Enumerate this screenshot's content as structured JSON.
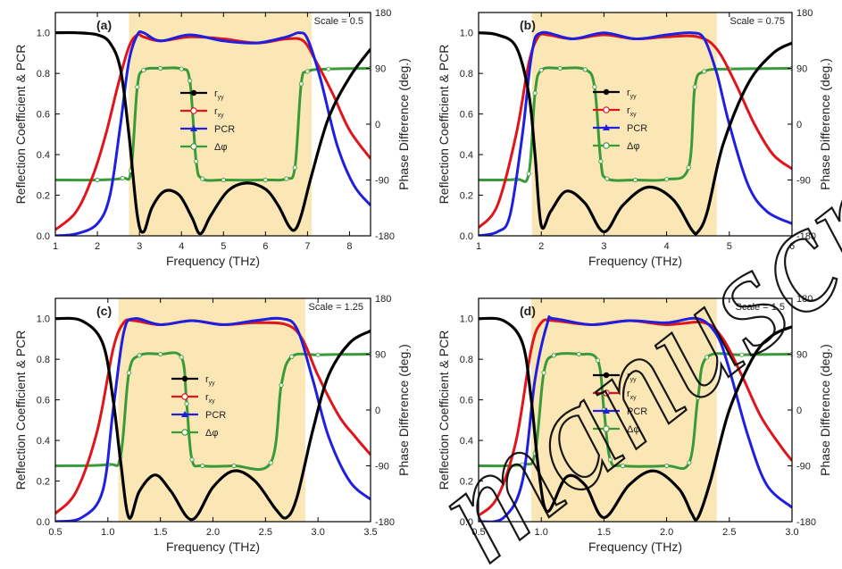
{
  "watermark": "manuscript",
  "chart_data": [
    {
      "type": "line",
      "panel_label": "(a)",
      "annotation": "Scale = 0.5",
      "xlabel": "Frequency (THz)",
      "ylabel": "Reflection Coefficient & PCR",
      "y2label": "Phase Difference (deg.)",
      "xlim": [
        1,
        8.5
      ],
      "ylim": [
        0,
        1.1
      ],
      "y2lim": [
        -180,
        180
      ],
      "xticks": [
        "1",
        "2",
        "3",
        "4",
        "5",
        "6",
        "7",
        "8"
      ],
      "yticks": [
        "0.0",
        "0.2",
        "0.4",
        "0.6",
        "0.8",
        "1.0"
      ],
      "y2ticks": [
        "-180",
        "-90",
        "0",
        "90",
        "180"
      ],
      "highlight_band": [
        2.75,
        7.1
      ],
      "legend": [
        "r_yy",
        "r_xy",
        "PCR",
        "Δφ"
      ],
      "series": [
        {
          "name": "r_yy",
          "color": "#000000",
          "x": [
            1,
            1.5,
            2,
            2.3,
            2.55,
            2.75,
            2.95,
            3.1,
            3.3,
            3.6,
            3.95,
            4.25,
            4.45,
            4.7,
            5.1,
            5.55,
            6.0,
            6.3,
            6.55,
            6.7,
            6.85,
            7.1,
            7.5,
            8.0,
            8.5
          ],
          "y": [
            1.0,
            1.0,
            0.99,
            0.95,
            0.82,
            0.5,
            0.1,
            0.02,
            0.14,
            0.22,
            0.2,
            0.09,
            0.01,
            0.1,
            0.22,
            0.26,
            0.23,
            0.15,
            0.05,
            0.03,
            0.1,
            0.3,
            0.58,
            0.78,
            0.92
          ]
        },
        {
          "name": "r_xy",
          "color": "#e0151b",
          "x": [
            1,
            1.5,
            1.9,
            2.2,
            2.5,
            2.75,
            2.95,
            3.1,
            3.5,
            4.2,
            5.0,
            5.8,
            6.5,
            6.9,
            7.2,
            7.6,
            8.0,
            8.5
          ],
          "y": [
            0.03,
            0.12,
            0.3,
            0.5,
            0.75,
            0.93,
            0.99,
            0.98,
            0.96,
            0.98,
            0.97,
            0.95,
            0.97,
            0.96,
            0.86,
            0.7,
            0.52,
            0.38
          ]
        },
        {
          "name": "PCR",
          "color": "#1f1fe0",
          "x": [
            1,
            1.5,
            2.0,
            2.3,
            2.55,
            2.75,
            2.95,
            3.1,
            3.5,
            4.2,
            5.0,
            5.8,
            6.5,
            6.8,
            7.0,
            7.3,
            7.7,
            8.1,
            8.5
          ],
          "y": [
            0.0,
            0.01,
            0.06,
            0.2,
            0.55,
            0.86,
            0.99,
            1.0,
            0.96,
            0.99,
            0.96,
            0.95,
            0.98,
            1.0,
            0.97,
            0.78,
            0.45,
            0.25,
            0.15
          ]
        },
        {
          "name": "Δφ",
          "color": "#3a9a3a",
          "axis": "right",
          "x": [
            1,
            2.0,
            2.6,
            2.8,
            2.95,
            3.1,
            3.5,
            4.0,
            4.2,
            4.35,
            4.5,
            5.0,
            6.0,
            6.5,
            6.7,
            6.85,
            7.0,
            7.5,
            8.5
          ],
          "y": [
            -90,
            -90,
            -87,
            -75,
            60,
            87,
            90,
            89,
            70,
            -60,
            -88,
            -90,
            -90,
            -88,
            -70,
            65,
            85,
            89,
            90
          ]
        }
      ]
    },
    {
      "type": "line",
      "panel_label": "(b)",
      "annotation": "Scale = 0.75",
      "xlabel": "Frequency (THz)",
      "ylabel": "Reflection Coefficient & PCR",
      "y2label": "Phase Difference (deg.)",
      "xlim": [
        1,
        6
      ],
      "ylim": [
        0,
        1.1
      ],
      "y2lim": [
        -180,
        180
      ],
      "xticks": [
        "1",
        "2",
        "3",
        "4",
        "5",
        "6"
      ],
      "yticks": [
        "0.0",
        "0.2",
        "0.4",
        "0.6",
        "0.8",
        "1.0"
      ],
      "y2ticks": [
        "-180",
        "-90",
        "0",
        "90",
        "180"
      ],
      "highlight_band": [
        1.85,
        4.8
      ],
      "legend": [
        "r_yy",
        "r_xy",
        "PCR",
        "Δφ"
      ],
      "series": [
        {
          "name": "r_yy",
          "color": "#000000",
          "x": [
            1,
            1.3,
            1.6,
            1.8,
            1.9,
            2.0,
            2.15,
            2.4,
            2.7,
            3.0,
            3.3,
            3.7,
            4.1,
            4.4,
            4.5,
            4.65,
            4.9,
            5.3,
            5.7,
            6.0
          ],
          "y": [
            1.0,
            0.99,
            0.93,
            0.7,
            0.4,
            0.05,
            0.12,
            0.22,
            0.16,
            0.02,
            0.15,
            0.24,
            0.18,
            0.03,
            0.02,
            0.12,
            0.45,
            0.75,
            0.9,
            0.95
          ]
        },
        {
          "name": "r_xy",
          "color": "#e0151b",
          "x": [
            1,
            1.3,
            1.6,
            1.8,
            1.95,
            2.1,
            2.5,
            3.0,
            3.5,
            4.0,
            4.5,
            4.8,
            5.1,
            5.4,
            5.7,
            6.0
          ],
          "y": [
            0.04,
            0.15,
            0.5,
            0.85,
            0.98,
            0.99,
            0.97,
            0.99,
            0.97,
            0.98,
            0.98,
            0.92,
            0.75,
            0.55,
            0.4,
            0.33
          ]
        },
        {
          "name": "PCR",
          "color": "#1f1fe0",
          "x": [
            1,
            1.3,
            1.5,
            1.7,
            1.85,
            2.0,
            2.5,
            3.0,
            3.5,
            4.0,
            4.4,
            4.6,
            4.8,
            5.0,
            5.3,
            5.6,
            6.0
          ],
          "y": [
            0.0,
            0.02,
            0.1,
            0.5,
            0.9,
            1.0,
            0.97,
            1.0,
            0.97,
            0.99,
            1.0,
            0.97,
            0.8,
            0.55,
            0.25,
            0.12,
            0.06
          ]
        },
        {
          "name": "Δφ",
          "color": "#3a9a3a",
          "axis": "right",
          "x": [
            1,
            1.6,
            1.8,
            1.9,
            2.0,
            2.3,
            2.7,
            2.85,
            2.95,
            3.05,
            3.5,
            4.0,
            4.35,
            4.45,
            4.6,
            5.0,
            6.0
          ],
          "y": [
            -90,
            -89,
            -80,
            50,
            87,
            90,
            88,
            60,
            -60,
            -88,
            -90,
            -89,
            -70,
            60,
            85,
            89,
            90
          ]
        }
      ]
    },
    {
      "type": "line",
      "panel_label": "(c)",
      "annotation": "Scale = 1.25",
      "xlabel": "Frequency (THz)",
      "ylabel": "Reflection Coefficient & PCR",
      "y2label": "Phase Difference (deg.)",
      "xlim": [
        0.5,
        3.5
      ],
      "ylim": [
        0,
        1.1
      ],
      "y2lim": [
        -180,
        180
      ],
      "xticks": [
        "0.5",
        "1.0",
        "1.5",
        "2.0",
        "2.5",
        "3.0",
        "3.5"
      ],
      "yticks": [
        "0.0",
        "0.2",
        "0.4",
        "0.6",
        "0.8",
        "1.0"
      ],
      "y2ticks": [
        "-180",
        "-90",
        "0",
        "90",
        "180"
      ],
      "highlight_band": [
        1.1,
        2.88
      ],
      "legend": [
        "r_yy",
        "r_xy",
        "PCR",
        "Δφ"
      ],
      "series": [
        {
          "name": "r_yy",
          "color": "#000000",
          "x": [
            0.5,
            0.75,
            0.95,
            1.05,
            1.12,
            1.2,
            1.3,
            1.45,
            1.6,
            1.8,
            2.0,
            2.2,
            2.4,
            2.6,
            2.7,
            2.8,
            2.95,
            3.1,
            3.3,
            3.5
          ],
          "y": [
            1.0,
            0.99,
            0.88,
            0.6,
            0.3,
            0.02,
            0.15,
            0.23,
            0.15,
            0.01,
            0.17,
            0.25,
            0.2,
            0.06,
            0.02,
            0.12,
            0.45,
            0.72,
            0.88,
            0.94
          ]
        },
        {
          "name": "r_xy",
          "color": "#e0151b",
          "x": [
            0.5,
            0.7,
            0.9,
            1.05,
            1.15,
            1.25,
            1.5,
            1.8,
            2.1,
            2.4,
            2.7,
            2.85,
            3.0,
            3.2,
            3.35,
            3.5
          ],
          "y": [
            0.04,
            0.15,
            0.45,
            0.85,
            0.98,
            0.99,
            0.97,
            0.99,
            0.97,
            0.98,
            0.97,
            0.9,
            0.72,
            0.52,
            0.42,
            0.33
          ]
        },
        {
          "name": "PCR",
          "color": "#1f1fe0",
          "x": [
            0.5,
            0.75,
            0.95,
            1.05,
            1.15,
            1.25,
            1.5,
            1.8,
            2.1,
            2.4,
            2.65,
            2.8,
            2.95,
            3.1,
            3.3,
            3.5
          ],
          "y": [
            0.0,
            0.02,
            0.15,
            0.55,
            0.93,
            1.0,
            0.97,
            0.99,
            0.97,
            0.99,
            1.0,
            0.95,
            0.7,
            0.42,
            0.2,
            0.11
          ]
        },
        {
          "name": "Δφ",
          "color": "#3a9a3a",
          "axis": "right",
          "x": [
            0.5,
            1.0,
            1.12,
            1.2,
            1.3,
            1.5,
            1.7,
            1.75,
            1.8,
            1.9,
            2.2,
            2.55,
            2.65,
            2.75,
            3.0,
            3.5
          ],
          "y": [
            -90,
            -88,
            -75,
            60,
            88,
            90,
            85,
            10,
            -80,
            -90,
            -90,
            -85,
            40,
            86,
            89,
            90
          ]
        }
      ]
    },
    {
      "type": "line",
      "panel_label": "(d)",
      "annotation": "Scale = 1.5",
      "xlabel": "Frequency (THz)",
      "ylabel": "Reflection Coefficient & PCR",
      "y2label": "Phase Difference (deg.)",
      "xlim": [
        0.5,
        3.0
      ],
      "ylim": [
        0,
        1.1
      ],
      "y2lim": [
        -180,
        180
      ],
      "xticks": [
        "0.5",
        "1.0",
        "1.5",
        "2.0",
        "2.5",
        "3.0"
      ],
      "yticks": [
        "0.0",
        "0.2",
        "0.4",
        "0.6",
        "0.8",
        "1.0"
      ],
      "y2ticks": [
        "-180",
        "-90",
        "0",
        "90",
        "180"
      ],
      "highlight_band": [
        0.92,
        2.4
      ],
      "legend": [
        "r_yy",
        "r_xy",
        "PCR",
        "Δφ"
      ],
      "series": [
        {
          "name": "r_yy",
          "color": "#000000",
          "x": [
            0.5,
            0.7,
            0.85,
            0.92,
            0.98,
            1.05,
            1.2,
            1.35,
            1.5,
            1.7,
            1.9,
            2.1,
            2.2,
            2.25,
            2.35,
            2.5,
            2.7,
            2.85,
            3.0
          ],
          "y": [
            1.0,
            0.99,
            0.88,
            0.6,
            0.25,
            0.05,
            0.22,
            0.18,
            0.02,
            0.18,
            0.25,
            0.16,
            0.04,
            0.02,
            0.2,
            0.55,
            0.82,
            0.92,
            0.96
          ]
        },
        {
          "name": "r_xy",
          "color": "#e0151b",
          "x": [
            0.5,
            0.65,
            0.8,
            0.92,
            1.0,
            1.1,
            1.4,
            1.7,
            2.0,
            2.3,
            2.45,
            2.6,
            2.75,
            2.9,
            3.0
          ],
          "y": [
            0.03,
            0.12,
            0.4,
            0.85,
            0.98,
            0.99,
            0.97,
            0.99,
            0.97,
            0.98,
            0.9,
            0.72,
            0.52,
            0.38,
            0.3
          ]
        },
        {
          "name": "PCR",
          "color": "#1f1fe0",
          "x": [
            0.5,
            0.7,
            0.85,
            0.95,
            1.05,
            1.1,
            1.4,
            1.7,
            2.0,
            2.25,
            2.4,
            2.5,
            2.65,
            2.8,
            3.0
          ],
          "y": [
            0.0,
            0.02,
            0.2,
            0.7,
            0.98,
            1.0,
            0.97,
            0.99,
            0.98,
            1.0,
            0.92,
            0.75,
            0.42,
            0.18,
            0.07
          ]
        },
        {
          "name": "Δφ",
          "color": "#3a9a3a",
          "axis": "right",
          "x": [
            0.5,
            0.85,
            0.95,
            1.02,
            1.1,
            1.3,
            1.45,
            1.5,
            1.55,
            1.65,
            2.0,
            2.18,
            2.25,
            2.32,
            2.6,
            3.0
          ],
          "y": [
            -90,
            -88,
            -70,
            60,
            88,
            90,
            80,
            0,
            -80,
            -90,
            -90,
            -85,
            20,
            85,
            89,
            90
          ]
        }
      ]
    }
  ]
}
